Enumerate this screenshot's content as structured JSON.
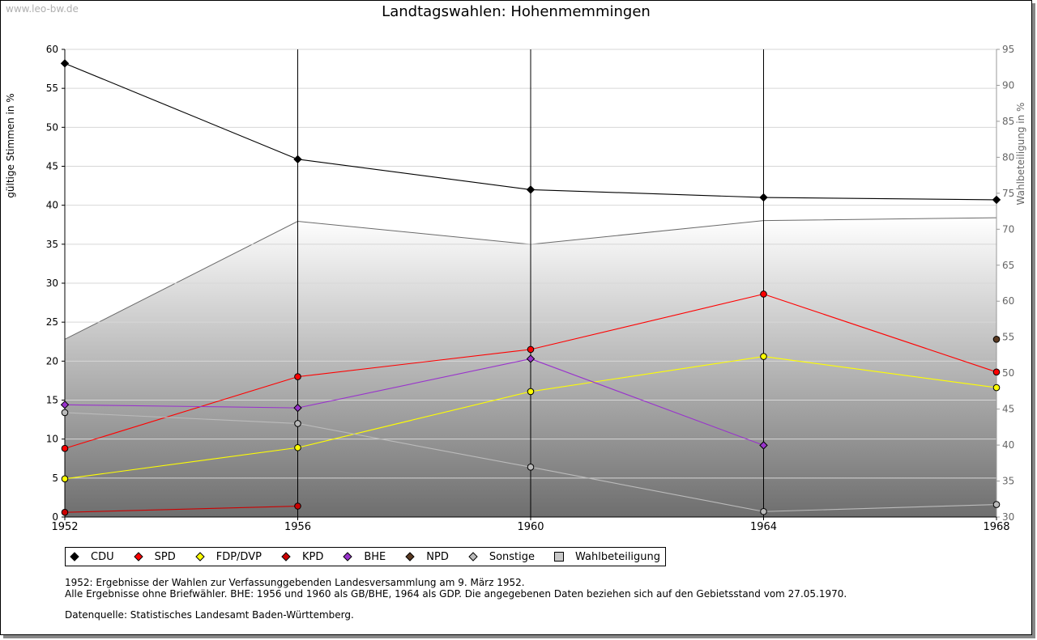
{
  "watermark": "www.leo-bw.de",
  "chart_data": {
    "type": "line",
    "title": "Landtagswahlen: Hohenmemmingen",
    "ylabel": "gültige Stimmen in %",
    "y2label": "Wahlbeteiligung in %",
    "ylim": [
      0,
      60
    ],
    "y2lim": [
      30,
      95
    ],
    "yticks": [
      0,
      5,
      10,
      15,
      20,
      25,
      30,
      35,
      40,
      45,
      50,
      55,
      60
    ],
    "y2ticks": [
      30,
      35,
      40,
      45,
      50,
      55,
      60,
      65,
      70,
      75,
      80,
      85,
      90,
      95
    ],
    "x": [
      1952,
      1956,
      1960,
      1964,
      1968
    ],
    "x_tick_labels": [
      "1952",
      "1956",
      "1960",
      "1964",
      "1968"
    ],
    "grid": true,
    "legend_position": "bottom",
    "series": [
      {
        "name": "CDU",
        "color": "#000000",
        "marker": "diamond",
        "values": [
          58.2,
          45.9,
          42.0,
          41.0,
          40.7
        ]
      },
      {
        "name": "SPD",
        "color": "#ff0000",
        "marker": "circle",
        "values": [
          8.8,
          18.0,
          21.5,
          28.6,
          18.6
        ]
      },
      {
        "name": "FDP/DVP",
        "color": "#ffff00",
        "marker": "circle",
        "values": [
          4.9,
          8.9,
          16.1,
          20.6,
          16.6
        ]
      },
      {
        "name": "KPD",
        "color": "#cc0000",
        "marker": "circle",
        "values": [
          0.6,
          1.4,
          null,
          null,
          null
        ]
      },
      {
        "name": "BHE",
        "color": "#9933cc",
        "marker": "diamond",
        "values": [
          14.4,
          14.0,
          20.3,
          9.2,
          null
        ]
      },
      {
        "name": "NPD",
        "color": "#5a3a22",
        "marker": "circle",
        "values": [
          null,
          null,
          null,
          null,
          22.8
        ]
      },
      {
        "name": "Sonstige",
        "color": "#bbbbbb",
        "marker": "circle",
        "values": [
          13.4,
          12.0,
          6.4,
          0.7,
          1.6
        ]
      }
    ],
    "turnout": {
      "name": "Wahlbeteiligung",
      "axis": "right",
      "values": [
        54.7,
        71.1,
        67.9,
        71.2,
        71.6
      ]
    }
  },
  "notes": {
    "line1": "1952: Ergebnisse der Wahlen zur Verfassunggebenden Landesversammlung am 9. März 1952.",
    "line2": "Alle Ergebnisse ohne Briefwähler. BHE: 1956 und 1960 als GB/BHE, 1964 als GDP. Die angegebenen Daten beziehen sich auf den Gebietsstand vom 27.05.1970.",
    "source": "Datenquelle: Statistisches Landesamt Baden-Württemberg."
  }
}
